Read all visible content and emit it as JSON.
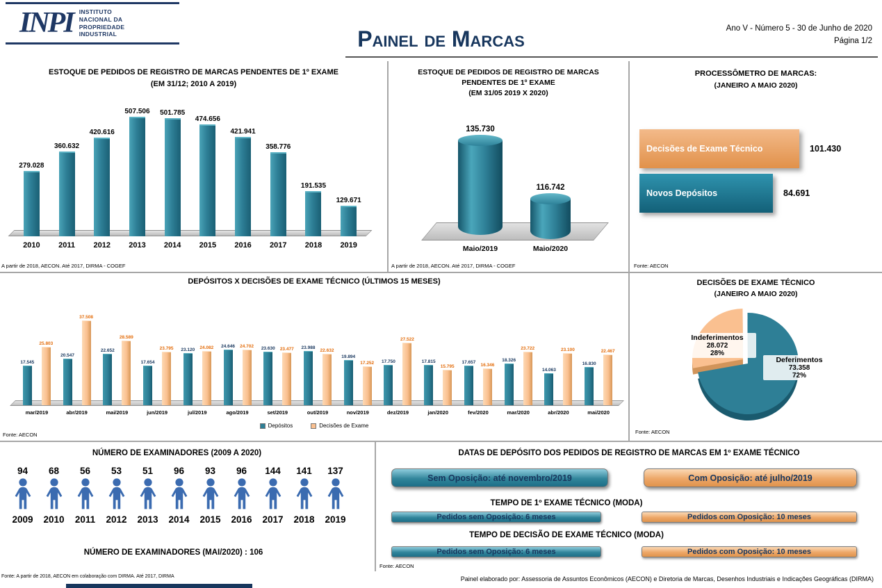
{
  "header": {
    "logo_acronym": "INPI",
    "logo_lines": [
      "INSTITUTO",
      "NACIONAL DA",
      "PROPRIEDADE",
      "INDUSTRIAL"
    ],
    "title": "Painel de Marcas",
    "edition": "Ano V - Número 5 - 30 de Junho de 2020",
    "page": "Página 1/2"
  },
  "footer": {
    "credit": "Painel elaborado por: Assessoria de Assuntos Econômicos (AECON) e Diretoria de Marcas, Desenhos Industriais e Indicações Geográficas (DIRMA)"
  },
  "colors": {
    "teal": "#2E7F96",
    "tan": "#FAC090",
    "orange_label": "#E36C0A",
    "navy": "#17365D",
    "steel_blue": "#3B6BB0"
  },
  "panels": {
    "estoque_anual": {
      "title_line1": "ESTOQUE DE PEDIDOS DE REGISTRO DE MARCAS PENDENTES DE 1º EXAME",
      "title_line2": "(EM 31/12; 2010 A 2019)",
      "footnote": "A partir de 2018, AECON. Até 2017, DIRMA - COGEF"
    },
    "estoque_maio": {
      "title_line1": "ESTOQUE DE PEDIDOS DE REGISTRO DE MARCAS",
      "title_line2": "PENDENTES DE 1º EXAME",
      "title_line3": "(EM  31/05  2019 X 2020)",
      "footnote": "A partir de 2018, AECON. Até 2017, DIRMA - COGEF"
    },
    "processometro": {
      "title_line1": "PROCESSÔMETRO DE MARCAS:",
      "title_line2": "(JANEIRO A MAIO 2020)",
      "footnote": "Fonte: AECON"
    },
    "depositos_decisoes": {
      "title": "DEPÓSITOS X DECISÕES DE EXAME TÉCNICO (ÚLTIMOS 15 MESES)",
      "footnote": "Fonte: AECON"
    },
    "decisoes_pie": {
      "title_line1": "DECISÕES DE EXAME TÉCNICO",
      "title_line2": "(JANEIRO A MAIO 2020)",
      "footnote": "Fonte: AECON"
    },
    "examinadores": {
      "title": "NÚMERO DE EXAMINADORES (2009 A 2020)",
      "current": "NÚMERO DE EXAMINADORES (MAI/2020) : 106",
      "footnote": "Fonte: A partir de 2018, AECON em colaboração com DIRMA. Até 2017, DIRMA"
    },
    "datas_deposito": {
      "title": "DATAS DE DEPÓSITO DOS PEDIDOS DE REGISTRO DE MARCAS EM 1º EXAME  TÉCNICO",
      "button_sem": "Sem Oposição: até novembro/2019",
      "button_com": "Com Oposição: até julho/2019",
      "section1_title": "TEMPO DE  1º EXAME  TÉCNICO (MODA)",
      "section1_sem": "Pedidos sem Oposição: 6 meses",
      "section1_com": "Pedidos com Oposição: 10 meses",
      "section2_title": "TEMPO DE  DECISÃO DE EXAME  TÉCNICO (MODA)",
      "section2_sem": "Pedidos sem Oposição: 6 meses",
      "section2_com": "Pedidos com Oposição: 10 meses",
      "footnote": "Fonte: AECON"
    }
  },
  "chart_data": [
    {
      "id": "estoque_anual",
      "type": "bar",
      "title": "ESTOQUE DE PEDIDOS DE REGISTRO DE MARCAS PENDENTES DE 1º EXAME (EM 31/12; 2010 A 2019)",
      "categories": [
        "2010",
        "2011",
        "2012",
        "2013",
        "2014",
        "2015",
        "2016",
        "2017",
        "2018",
        "2019"
      ],
      "values": [
        279028,
        360632,
        420616,
        507506,
        501785,
        474656,
        421941,
        358776,
        191535,
        129671
      ],
      "labels": [
        "279.028",
        "360.632",
        "420.616",
        "507.506",
        "501.785",
        "474.656",
        "421.941",
        "358.776",
        "191.535",
        "129.671"
      ],
      "ylim": [
        0,
        520000
      ],
      "bar_color": "#2E7F96"
    },
    {
      "id": "estoque_maio",
      "type": "bar",
      "title": "ESTOQUE DE PEDIDOS DE REGISTRO DE MARCAS PENDENTES DE 1º EXAME (EM 31/05 2019 X 2020)",
      "categories": [
        "Maio/2019",
        "Maio/2020"
      ],
      "values": [
        135730,
        116742
      ],
      "labels": [
        "135.730",
        "116.742"
      ],
      "display_heights": [
        136,
        58
      ],
      "bar_color": "#2E7F96"
    },
    {
      "id": "processometro",
      "type": "bar",
      "orientation": "horizontal",
      "title": "PROCESSÔMETRO DE MARCAS: (JANEIRO A MAIO 2020)",
      "categories": [
        "Decisões de Exame  Técnico",
        "Novos Depósitos"
      ],
      "values": [
        101430,
        84691
      ],
      "labels": [
        "101.430",
        "84.691"
      ],
      "bar_colors": [
        "#E8A35E",
        "#21708A"
      ]
    },
    {
      "id": "depositos_decisoes",
      "type": "bar",
      "title": "DEPÓSITOS X DECISÕES DE EXAME TÉCNICO (ÚLTIMOS 15 MESES)",
      "categories": [
        "mar/2019",
        "abr/2019",
        "mai/2019",
        "jun/2019",
        "jul/2019",
        "ago/2019",
        "set/2019",
        "out/2019",
        "nov/2019",
        "dez/2019",
        "jan/2020",
        "fev/2020",
        "mar/2020",
        "abr/2020",
        "mai/2020"
      ],
      "series": [
        {
          "name": "Depósitos",
          "color": "#2E7F96",
          "values": [
            17545,
            20547,
            22652,
            17654,
            23120,
            24646,
            23630,
            23988,
            19894,
            17750,
            17815,
            17657,
            18326,
            14063,
            16830
          ],
          "labels": [
            "17.545",
            "20.547",
            "22.652",
            "17.654",
            "23.120",
            "24.646",
            "23.630",
            "23.988",
            "19.894",
            "17.750",
            "17.815",
            "17.657",
            "18.326",
            "14.063",
            "16.830"
          ]
        },
        {
          "name": "Decisões de Exame",
          "color": "#FAC090",
          "values": [
            25803,
            37508,
            28589,
            23795,
            24082,
            24702,
            23477,
            22632,
            17252,
            27522,
            15795,
            16346,
            23722,
            23100,
            22467
          ],
          "labels": [
            "25.803",
            "37.508",
            "28.589",
            "23.795",
            "24.082",
            "24.702",
            "23.477",
            "22.632",
            "17.252",
            "27.522",
            "15.795",
            "16.346",
            "23.722",
            "23.100",
            "22.467"
          ]
        }
      ],
      "ylim": [
        0,
        40000
      ],
      "legend_position": "bottom"
    },
    {
      "id": "decisoes_pie",
      "type": "pie",
      "title": "DECISÕES DE EXAME TÉCNICO (JANEIRO A MAIO 2020)",
      "slices": [
        {
          "name": "Deferimentos",
          "value": 73358,
          "label": "73.358",
          "pct": "72%",
          "color": "#2E7F96"
        },
        {
          "name": "Indeferimentos",
          "value": 28072,
          "label": "28.072",
          "pct": "28%",
          "color": "#FAC090"
        }
      ]
    },
    {
      "id": "examinadores",
      "type": "bar",
      "title": "NÚMERO DE EXAMINADORES (2009 A 2020)",
      "categories": [
        "2009",
        "2010",
        "2011",
        "2012",
        "2013",
        "2014",
        "2015",
        "2016",
        "2017",
        "2018",
        "2019"
      ],
      "values": [
        94,
        68,
        56,
        53,
        51,
        96,
        93,
        96,
        144,
        141,
        137
      ],
      "note": "NÚMERO DE EXAMINADORES (MAI/2020) : 106",
      "icon_color": "#3B6BB0"
    }
  ]
}
